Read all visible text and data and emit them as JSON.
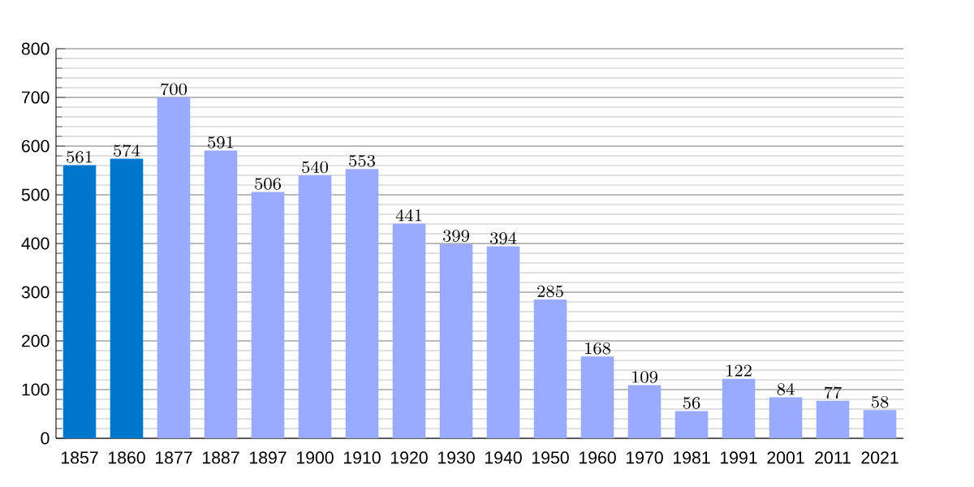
{
  "chart_data": {
    "type": "bar",
    "categories": [
      "1857",
      "1860",
      "1877",
      "1887",
      "1897",
      "1900",
      "1910",
      "1920",
      "1930",
      "1940",
      "1950",
      "1960",
      "1970",
      "1981",
      "1991",
      "2001",
      "2011",
      "2021"
    ],
    "values": [
      561,
      574,
      700,
      591,
      506,
      540,
      553,
      441,
      399,
      394,
      285,
      168,
      109,
      56,
      122,
      84,
      77,
      58
    ],
    "colors": [
      "#0077cc",
      "#0077cc",
      "#99aaff",
      "#99aaff",
      "#99aaff",
      "#99aaff",
      "#99aaff",
      "#99aaff",
      "#99aaff",
      "#99aaff",
      "#99aaff",
      "#99aaff",
      "#99aaff",
      "#99aaff",
      "#99aaff",
      "#99aaff",
      "#99aaff",
      "#99aaff"
    ],
    "ylim": [
      0,
      800
    ],
    "yticks": [
      0,
      100,
      200,
      300,
      400,
      500,
      600,
      700,
      800
    ],
    "grid": "y",
    "data_labels": true
  }
}
